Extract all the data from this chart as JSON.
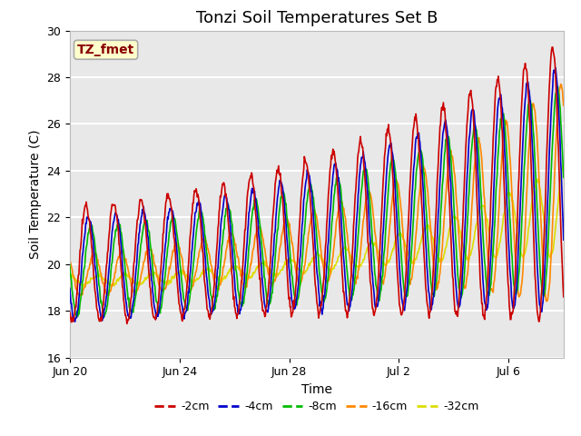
{
  "title": "Tonzi Soil Temperatures Set B",
  "xlabel": "Time",
  "ylabel": "Soil Temperature (C)",
  "ylim": [
    16,
    30
  ],
  "n_days": 18.0,
  "xtick_positions": [
    0,
    4,
    8,
    12,
    16
  ],
  "xtick_labels": [
    "Jun 20",
    "Jun 24",
    "Jun 28",
    "Jul 2",
    "Jul 6"
  ],
  "ytick_positions": [
    16,
    18,
    20,
    22,
    24,
    26,
    28,
    30
  ],
  "background_color": "#ffffff",
  "plot_bg_color": "#e8e8e8",
  "grid_color": "#ffffff",
  "annotation_label": "TZ_fmet",
  "annotation_bg": "#ffffcc",
  "annotation_border": "#aaaaaa",
  "annotation_text_color": "#880000",
  "series_labels": [
    "-2cm",
    "-4cm",
    "-8cm",
    "-16cm",
    "-32cm"
  ],
  "series_colors": [
    "#cc0000",
    "#0000cc",
    "#00bb00",
    "#ff8800",
    "#dddd00"
  ],
  "line_width": 1.2,
  "title_fontsize": 13,
  "axis_label_fontsize": 10,
  "tick_fontsize": 9,
  "annotation_fontsize": 10,
  "legend_fontsize": 9
}
